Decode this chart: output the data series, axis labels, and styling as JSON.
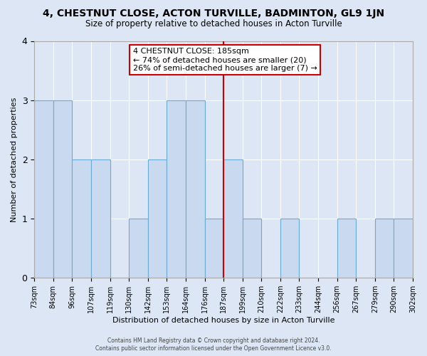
{
  "title": "4, CHESTNUT CLOSE, ACTON TURVILLE, BADMINTON, GL9 1JN",
  "subtitle": "Size of property relative to detached houses in Acton Turville",
  "xlabel": "Distribution of detached houses by size in Acton Turville",
  "ylabel": "Number of detached properties",
  "bin_labels": [
    "73sqm",
    "84sqm",
    "96sqm",
    "107sqm",
    "119sqm",
    "130sqm",
    "142sqm",
    "153sqm",
    "164sqm",
    "176sqm",
    "187sqm",
    "199sqm",
    "210sqm",
    "222sqm",
    "233sqm",
    "244sqm",
    "256sqm",
    "267sqm",
    "279sqm",
    "290sqm",
    "302sqm"
  ],
  "bar_heights": [
    3,
    3,
    2,
    2,
    0,
    1,
    2,
    3,
    3,
    1,
    2,
    1,
    0,
    1,
    0,
    0,
    1,
    0,
    1,
    1
  ],
  "bar_color": "#c9daf0",
  "bar_edge_color": "#6aabd6",
  "property_line_bin": 10,
  "annotation_title": "4 CHESTNUT CLOSE: 185sqm",
  "annotation_line1": "← 74% of detached houses are smaller (20)",
  "annotation_line2": "26% of semi-detached houses are larger (7) →",
  "annotation_box_facecolor": "#ffffff",
  "annotation_box_edgecolor": "#cc0000",
  "vline_color": "#cc0000",
  "ylim": [
    0,
    4
  ],
  "yticks": [
    0,
    1,
    2,
    3,
    4
  ],
  "fig_facecolor": "#dce6f5",
  "plot_facecolor": "#dce6f5",
  "grid_color": "#ffffff",
  "spine_color": "#aaaaaa",
  "footer_line1": "Contains HM Land Registry data © Crown copyright and database right 2024.",
  "footer_line2": "Contains public sector information licensed under the Open Government Licence v3.0."
}
